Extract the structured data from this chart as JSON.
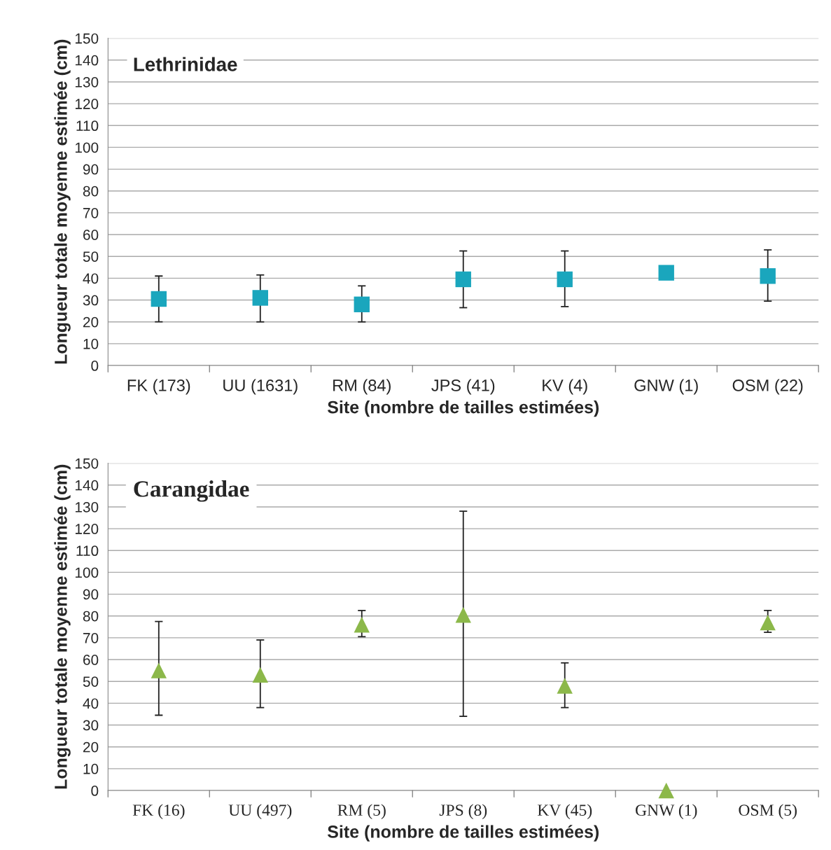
{
  "chart_data": [
    {
      "type": "scatter",
      "title": "Lethrinidae",
      "xlabel": "Site (nombre de tailles estimées)",
      "ylabel": "Longueur totale moyenne estimée (cm)",
      "categories": [
        "FK (173)",
        "UU (1631)",
        "RM (84)",
        "JPS (41)",
        "KV (4)",
        "GNW (1)",
        "OSM (22)"
      ],
      "series": [
        {
          "color": "#1aa6bd",
          "values": [
            30.5,
            31,
            28,
            39.5,
            39.5,
            42.5,
            41
          ],
          "errors": [
            [
              20,
              41
            ],
            [
              20,
              41.5
            ],
            [
              20,
              36.5
            ],
            [
              26.5,
              52.5
            ],
            [
              27,
              52.5
            ],
            null,
            [
              29.5,
              53
            ]
          ]
        }
      ],
      "marker": "square",
      "ylim": [
        0,
        150
      ],
      "yticks": [
        0,
        10,
        20,
        30,
        40,
        50,
        60,
        70,
        80,
        90,
        100,
        110,
        120,
        130,
        140,
        150
      ],
      "grid": "y",
      "legend": false
    },
    {
      "type": "scatter",
      "title": "Carangidae",
      "xlabel": "Site (nombre de tailles estimées)",
      "ylabel": "Longueur totale moyenne estimée (cm)",
      "categories": [
        "FK (16)",
        "UU (497)",
        "RM (5)",
        "JPS (8)",
        "KV (45)",
        "GNW (1)",
        "OSM (5)"
      ],
      "series": [
        {
          "color": "#8cb84a",
          "values": [
            55,
            53,
            76,
            80.5,
            48,
            0,
            77
          ],
          "errors": [
            [
              34.5,
              77.5
            ],
            [
              38,
              69
            ],
            [
              70.5,
              82.5
            ],
            [
              34,
              128
            ],
            [
              38,
              58.5
            ],
            null,
            [
              72.5,
              82.5
            ]
          ]
        }
      ],
      "marker": "triangle",
      "ylim": [
        0,
        150
      ],
      "yticks": [
        0,
        10,
        20,
        30,
        40,
        50,
        60,
        70,
        80,
        90,
        100,
        110,
        120,
        130,
        140,
        150
      ],
      "grid": "y",
      "legend": false
    }
  ]
}
